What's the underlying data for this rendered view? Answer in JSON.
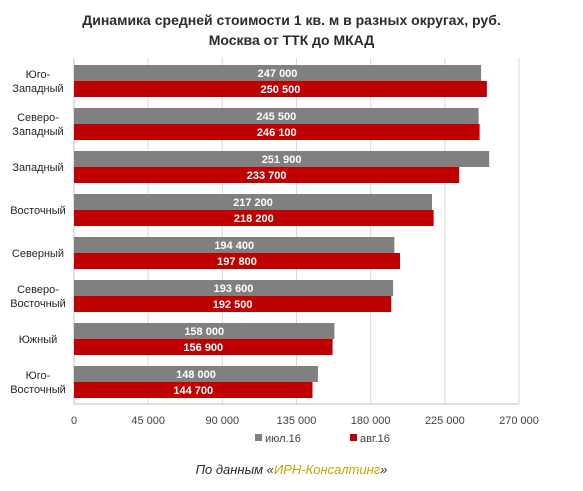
{
  "chart_data": {
    "type": "bar",
    "orientation": "horizontal",
    "title": "Динамика средней стоимости 1 кв. м в разных округах, руб.",
    "subtitle": "Москва от ТТК до МКАД",
    "categories": [
      [
        "Юго-",
        "Западный"
      ],
      [
        "Северо-",
        "Западный"
      ],
      [
        "Западный"
      ],
      [
        "Восточный"
      ],
      [
        "Северный"
      ],
      [
        "Северо-",
        "Восточный"
      ],
      [
        "Южный"
      ],
      [
        "Юго-",
        "Восточный"
      ]
    ],
    "series": [
      {
        "name": "июл.16",
        "color": "#808080",
        "values": [
          247000,
          245500,
          251900,
          217200,
          194400,
          193600,
          158000,
          148000
        ],
        "labels": [
          "247 000",
          "245 500",
          "251 900",
          "217 200",
          "194 400",
          "193 600",
          "158 000",
          "148 000"
        ]
      },
      {
        "name": "авг.16",
        "color": "#c00000",
        "values": [
          250500,
          246100,
          233700,
          218200,
          197800,
          192500,
          156900,
          144700
        ],
        "labels": [
          "250 500",
          "246 100",
          "233 700",
          "218 200",
          "197 800",
          "192 500",
          "156 900",
          "144 700"
        ]
      }
    ],
    "xlim": [
      0,
      270000
    ],
    "xticks": [
      0,
      45000,
      90000,
      135000,
      180000,
      225000,
      270000
    ],
    "xtick_labels": [
      "0",
      "45 000",
      "90 000",
      "135 000",
      "180 000",
      "225 000",
      "270 000"
    ],
    "grid": true,
    "legend_position": "bottom"
  },
  "source": {
    "prefix": "По данным «",
    "name": "ИРН-Консалтинг",
    "suffix": "»"
  }
}
